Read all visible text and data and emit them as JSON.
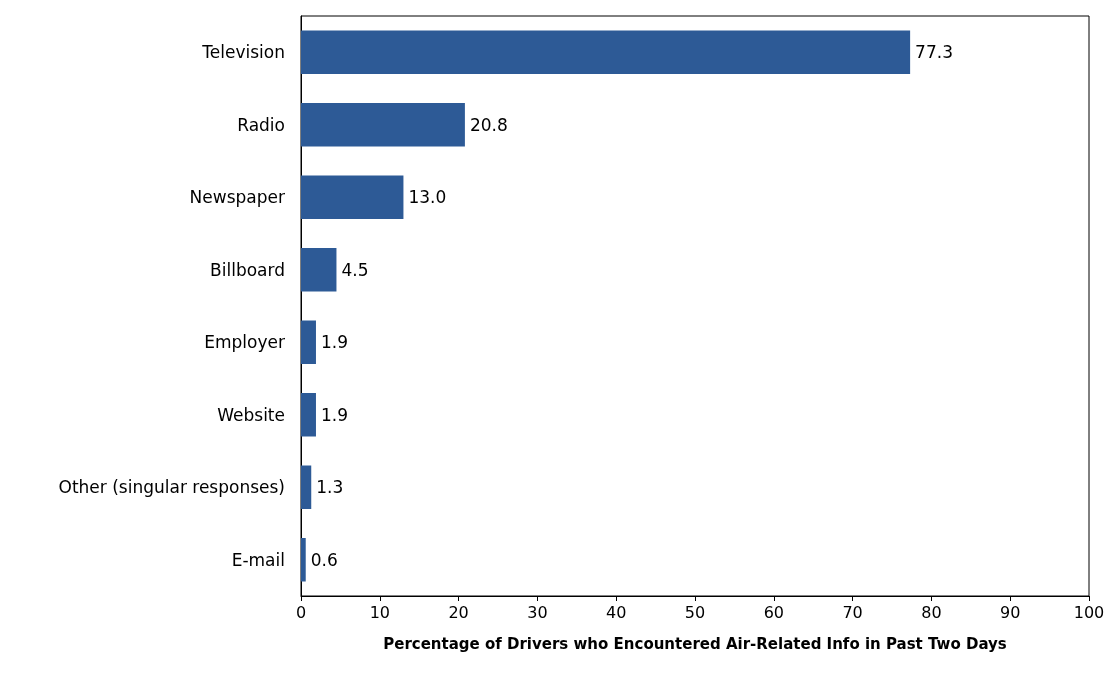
{
  "chart_data": {
    "type": "bar",
    "orientation": "horizontal",
    "xlabel": "Percentage of Drivers who Encountered Air-Related Info in Past Two Days",
    "categories": [
      "Television",
      "Radio",
      "Newspaper",
      "Billboard",
      "Employer",
      "Website",
      "Other (singular responses)",
      "E-mail"
    ],
    "values": [
      77.3,
      20.8,
      13.0,
      4.5,
      1.9,
      1.9,
      1.3,
      0.6
    ],
    "value_labels": [
      "77.3",
      "20.8",
      "13.0",
      "4.5",
      "1.9",
      "1.9",
      "1.3",
      "0.6"
    ],
    "color": "#2d5a96",
    "xlim": [
      0,
      100
    ],
    "xticks": [
      0,
      10,
      20,
      30,
      40,
      50,
      60,
      70,
      80,
      90,
      100
    ],
    "grid": false
  }
}
